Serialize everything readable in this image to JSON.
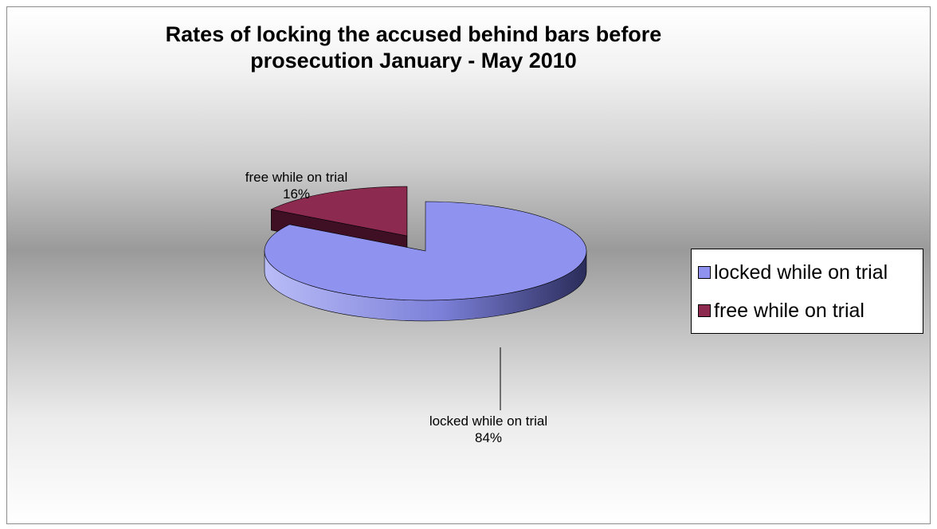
{
  "chart_data": {
    "type": "pie",
    "title": "Rates of locking the accused behind bars before\nprosecution January - May 2010",
    "categories": [
      "locked while on trial",
      "free while on trial"
    ],
    "values": [
      84,
      16
    ],
    "value_labels": [
      "84%",
      "16%"
    ],
    "colors": [
      "#8f93ef",
      "#8c2a4f"
    ],
    "pie_3d": true,
    "exploded_slice": "free while on trial",
    "legend_position": "right"
  }
}
